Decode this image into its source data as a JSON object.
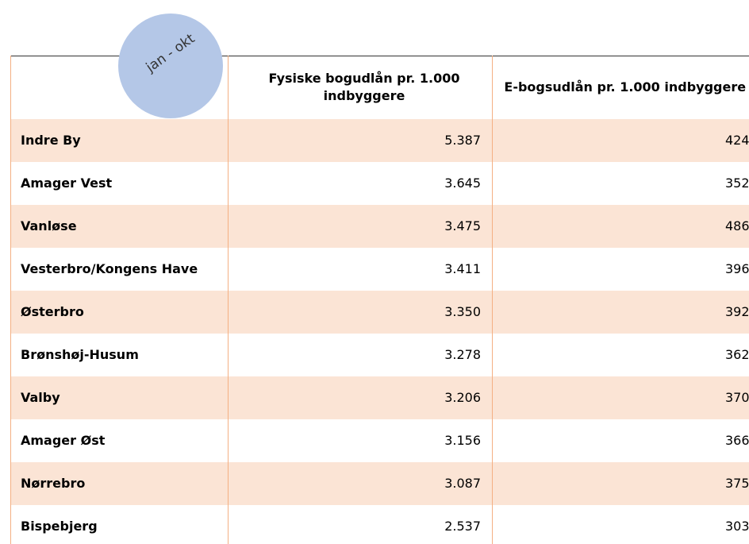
{
  "badge": "jan - okt",
  "table": {
    "header": [
      "",
      "Fysiske bogudlån pr. 1.000 indbyggere",
      "E-bogsudlån pr. 1.000 indbyggere"
    ],
    "rows": [
      [
        "Indre By",
        "5.387",
        "424"
      ],
      [
        "Amager Vest",
        "3.645",
        "352"
      ],
      [
        "Vanløse",
        "3.475",
        "486"
      ],
      [
        "Vesterbro/Kongens Have",
        "3.411",
        "396"
      ],
      [
        "Østerbro",
        "3.350",
        "392"
      ],
      [
        "Brønshøj-Husum",
        "3.278",
        "362"
      ],
      [
        "Valby",
        "3.206",
        "370"
      ],
      [
        "Amager Øst",
        "3.156",
        "366"
      ],
      [
        "Nørrebro",
        "3.087",
        "375"
      ],
      [
        "Bispebjerg",
        "2.537",
        "303"
      ]
    ]
  }
}
